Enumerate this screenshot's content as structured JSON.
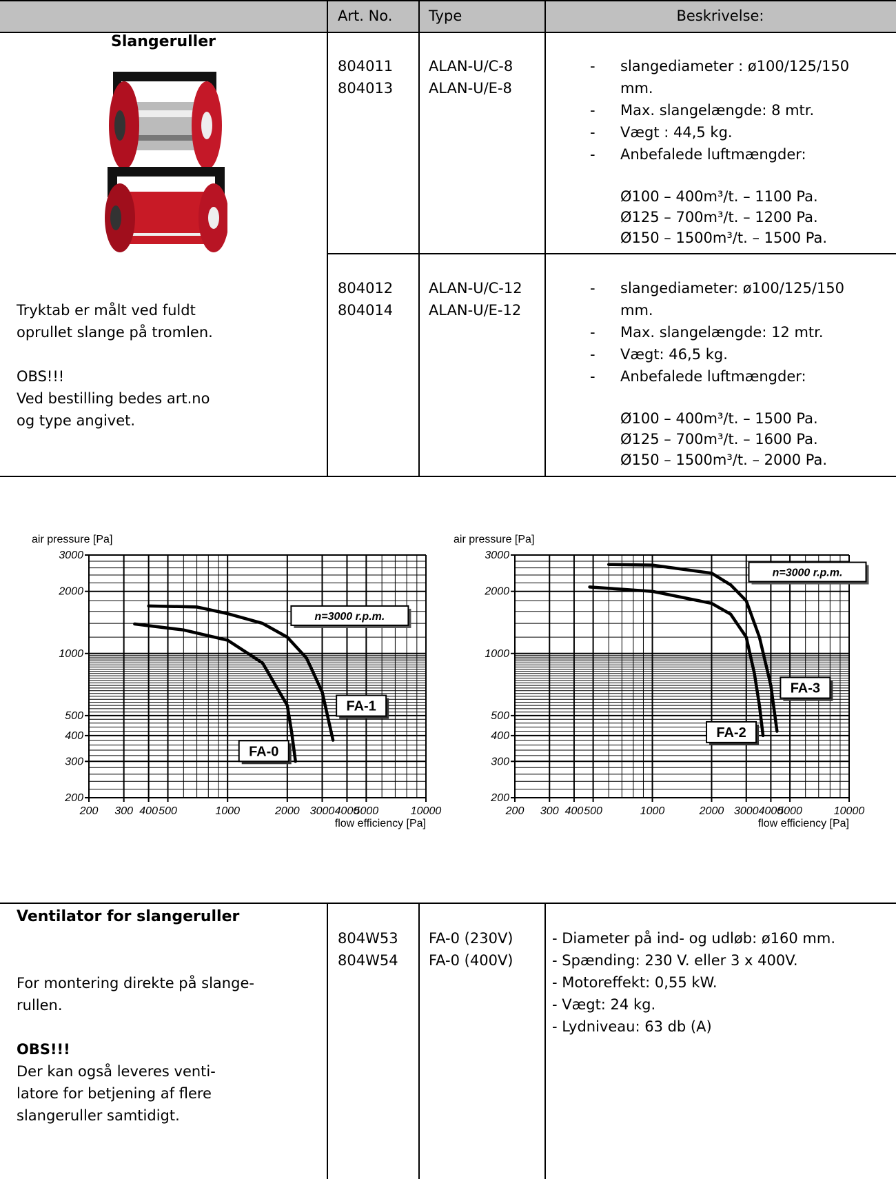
{
  "table": {
    "header": {
      "art_no": "Art. No.",
      "type": "Type",
      "description": "Beskrivelse:"
    },
    "rows": [
      {
        "title": "Slangeruller",
        "groups": [
          {
            "art_no": [
              "804011",
              "804013"
            ],
            "type": [
              "ALAN-U/C-8",
              "ALAN-U/E-8"
            ],
            "description": [
              "slangediameter : ø100/125/150 mm.",
              "Max. slangelængde: 8 mtr.",
              "Vægt : 44,5 kg.",
              "Anbefalede luftmængder:"
            ],
            "airflow": [
              "Ø100 – 400m³/t. – 1100 Pa.",
              "Ø125 – 700m³/t. – 1200 Pa.",
              "Ø150 – 1500m³/t. – 1500 Pa."
            ]
          },
          {
            "art_no": [
              "804012",
              "804014"
            ],
            "type": [
              "ALAN-U/C-12",
              "ALAN-U/E-12"
            ],
            "description": [
              "slangediameter: ø100/125/150 mm.",
              "Max. slangelængde: 12 mtr.",
              "Vægt: 46,5 kg.",
              "Anbefalede luftmængder:"
            ],
            "airflow": [
              "Ø100 – 400m³/t. – 1500 Pa.",
              "Ø125 – 700m³/t. – 1600 Pa.",
              "Ø150 – 1500m³/t. – 2000 Pa."
            ]
          }
        ],
        "note": [
          "Tryktab er målt ved fuldt",
          "oprullet slange på tromlen.",
          "OBS!!!",
          "Ved bestilling bedes art.no",
          "og type angivet."
        ]
      },
      {
        "title": "Ventilator for slangeruller",
        "intro": [
          "For montering direkte på slange-",
          "rullen."
        ],
        "obs": "OBS!!!",
        "note": [
          "Der kan også leveres venti-",
          "latore for betjening af flere",
          "slangeruller samtidigt."
        ],
        "art_no": [
          "804W53",
          "804W54"
        ],
        "type": [
          "FA-0 (230V)",
          "FA-0 (400V)"
        ],
        "description": [
          "- Diameter på ind- og udløb: ø160 mm.",
          "- Spænding: 230 V. eller 3 x 400V.",
          "- Motoreffekt: 0,55 kW.",
          "- Vægt: 24 kg.",
          "- Lydniveau: 63 db (A)"
        ]
      }
    ]
  },
  "chart_data": [
    {
      "type": "line",
      "y_label": "air pressure [Pa]",
      "x_label": "flow efficiency [Pa]",
      "annotation": "n=3000 r.p.m.",
      "xscale": "log",
      "yscale": "log",
      "grid": true,
      "xlim": [
        200,
        10000
      ],
      "ylim": [
        200,
        3000
      ],
      "xticks": [
        200,
        300,
        400,
        500,
        1000,
        2000,
        3000,
        4000,
        5000,
        10000
      ],
      "yticks": [
        200,
        300,
        400,
        500,
        1000,
        2000,
        3000
      ],
      "series": [
        {
          "name": "FA-0",
          "color": "#000000",
          "x": [
            340,
            600,
            1000,
            1500,
            2000,
            2100,
            2200
          ],
          "values": [
            1390,
            1300,
            1160,
            900,
            560,
            420,
            300
          ]
        },
        {
          "name": "FA-1",
          "color": "#000000",
          "x": [
            400,
            700,
            1000,
            1500,
            2000,
            2500,
            3000,
            3400
          ],
          "values": [
            1700,
            1680,
            1560,
            1400,
            1200,
            950,
            650,
            380
          ]
        }
      ]
    },
    {
      "type": "line",
      "y_label": "air pressure [Pa]",
      "x_label": "flow efficiency [Pa]",
      "annotation": "n=3000 r.p.m.",
      "xscale": "log",
      "yscale": "log",
      "grid": true,
      "xlim": [
        200,
        10000
      ],
      "ylim": [
        200,
        3000
      ],
      "xticks": [
        200,
        300,
        400,
        500,
        1000,
        2000,
        3000,
        4000,
        5000,
        10000
      ],
      "yticks": [
        200,
        300,
        400,
        500,
        1000,
        2000,
        3000
      ],
      "series": [
        {
          "name": "FA-2",
          "color": "#000000",
          "x": [
            480,
            1000,
            2000,
            2500,
            3000,
            3300,
            3500,
            3650
          ],
          "values": [
            2100,
            2000,
            1750,
            1550,
            1200,
            800,
            560,
            400
          ]
        },
        {
          "name": "FA-3",
          "color": "#000000",
          "x": [
            600,
            1000,
            2000,
            2500,
            3000,
            3500,
            4000,
            4300
          ],
          "values": [
            2700,
            2680,
            2450,
            2150,
            1800,
            1200,
            700,
            420
          ]
        }
      ]
    }
  ]
}
